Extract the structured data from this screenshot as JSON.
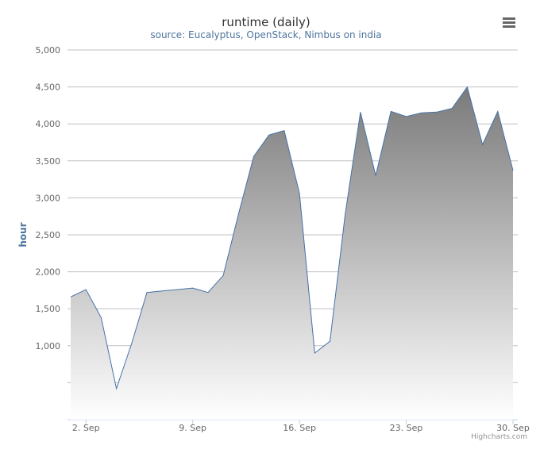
{
  "chart_data": {
    "type": "area",
    "title": "runtime (daily)",
    "subtitle": "source: Eucalyptus, OpenStack, Nimbus on india",
    "ylabel": "hour",
    "xlabel": "",
    "ylim": [
      0,
      5000
    ],
    "ytick_values": [
      500,
      1000,
      1500,
      2000,
      2500,
      3000,
      3500,
      4000,
      4500,
      5000
    ],
    "ytick_labels": [
      "",
      "1,000",
      "1,500",
      "2,000",
      "2,500",
      "3,000",
      "3,500",
      "4,000",
      "4,500",
      "5,000"
    ],
    "xlim": [
      1,
      30
    ],
    "xtick_values": [
      2,
      9,
      16,
      23,
      30
    ],
    "xtick_labels": [
      "2. Sep",
      "9. Sep",
      "16. Sep",
      "23. Sep",
      "30. Sep"
    ],
    "grid": true,
    "legend": false,
    "x": [
      1,
      2,
      3,
      4,
      5,
      6,
      7,
      8,
      9,
      10,
      11,
      12,
      13,
      14,
      15,
      16,
      17,
      18,
      19,
      20,
      21,
      22,
      23,
      24,
      25,
      26,
      27,
      28,
      29,
      30
    ],
    "series": [
      {
        "color": "#4572a7",
        "values": [
          1660,
          1760,
          1380,
          420,
          1030,
          1720,
          1740,
          1760,
          1780,
          1720,
          1950,
          2780,
          3560,
          3850,
          3910,
          3060,
          900,
          1060,
          2780,
          4160,
          3300,
          4170,
          4100,
          4150,
          4160,
          4210,
          4500,
          3720,
          4170,
          3370
        ]
      }
    ]
  },
  "credits": "Highcharts.com",
  "menu_icon": "hamburger-menu-icon"
}
